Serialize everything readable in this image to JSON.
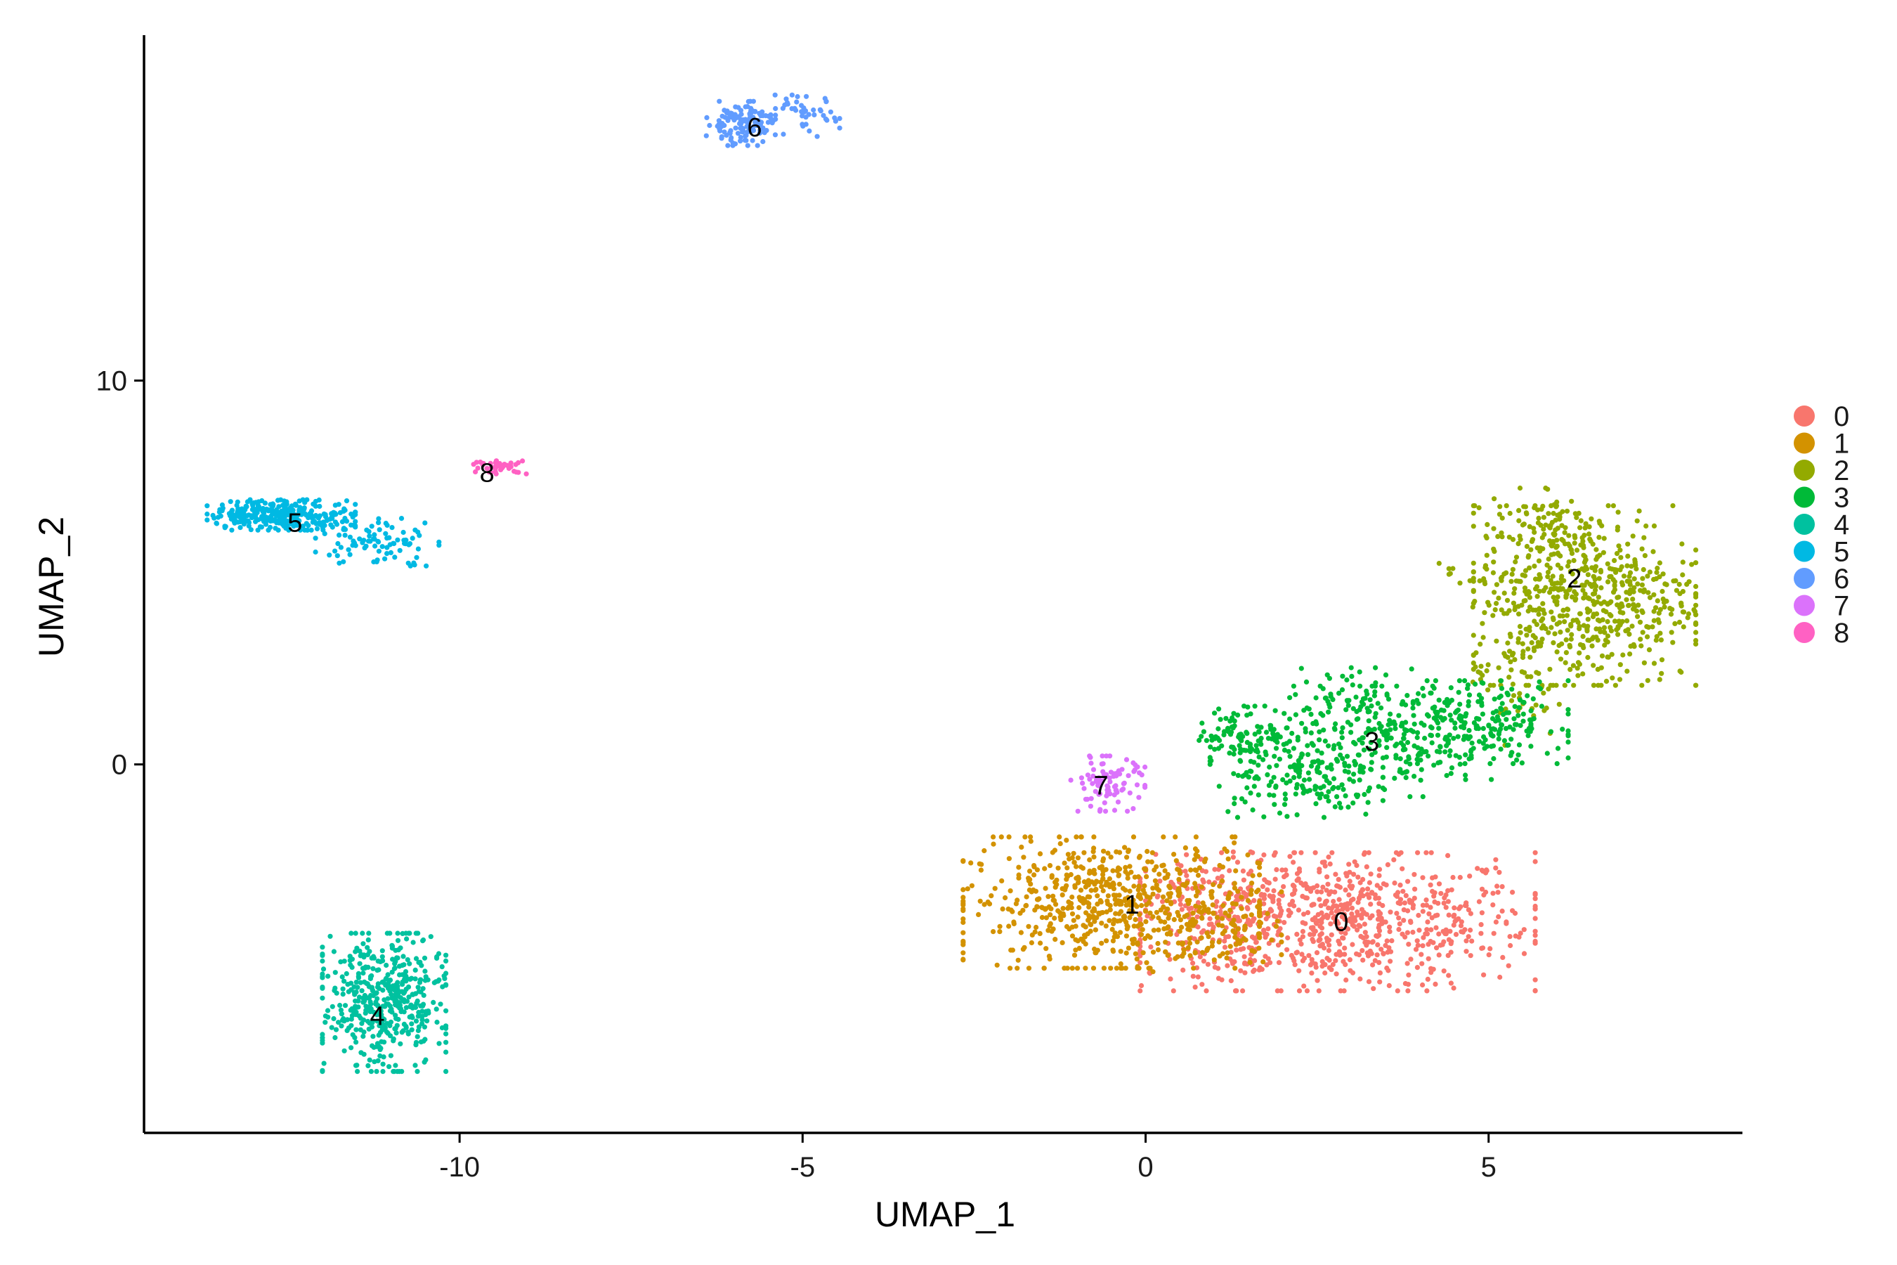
{
  "chart_data": {
    "type": "scatter",
    "title": "",
    "xlabel": "UMAP_1",
    "ylabel": "UMAP_2",
    "xlim": [
      -14.6,
      8.7
    ],
    "ylim": [
      -9.6,
      19.0
    ],
    "x_ticks": [
      -10,
      -5,
      0,
      5
    ],
    "y_ticks": [
      0,
      10
    ],
    "grid": false,
    "legend_position": "right",
    "series": [
      {
        "name": "0",
        "color": "#F8766D",
        "label_x": 2.85,
        "label_y": -4.1,
        "clusters": [
          {
            "center": [
              2.8,
              -4.1
            ],
            "spread": [
              1.6,
              1.0
            ],
            "n": 780
          },
          {
            "center": [
              0.9,
              -3.9
            ],
            "spread": [
              0.5,
              0.9
            ],
            "n": 120
          }
        ]
      },
      {
        "name": "1",
        "color": "#D39200",
        "label_x": -0.2,
        "label_y": -3.65,
        "clusters": [
          {
            "center": [
              -0.5,
              -3.6
            ],
            "spread": [
              1.2,
              0.95
            ],
            "n": 620
          },
          {
            "center": [
              0.9,
              -4.4
            ],
            "spread": [
              0.6,
              0.6
            ],
            "n": 90
          }
        ]
      },
      {
        "name": "2",
        "color": "#93AA00",
        "label_x": 6.25,
        "label_y": 4.85,
        "clusters": [
          {
            "center": [
              6.4,
              4.4
            ],
            "spread": [
              0.9,
              1.3
            ],
            "n": 620
          },
          {
            "center": [
              5.7,
              6.3
            ],
            "spread": [
              0.4,
              0.5
            ],
            "n": 60
          },
          {
            "center": [
              5.4,
              2.3
            ],
            "spread": [
              0.35,
              1.0
            ],
            "n": 60
          },
          {
            "center": [
              4.9,
              4.9
            ],
            "spread": [
              0.35,
              0.2
            ],
            "n": 20
          }
        ]
      },
      {
        "name": "3",
        "color": "#00BA38",
        "label_x": 3.3,
        "label_y": 0.6,
        "clusters": [
          {
            "center": [
              1.5,
              0.8
            ],
            "spread": [
              0.4,
              0.4
            ],
            "n": 110
          },
          {
            "center": [
              2.2,
              -0.3
            ],
            "spread": [
              0.7,
              0.6
            ],
            "n": 160
          },
          {
            "center": [
              3.6,
              0.6
            ],
            "spread": [
              0.8,
              0.8
            ],
            "n": 230
          },
          {
            "center": [
              4.9,
              1.1
            ],
            "spread": [
              0.7,
              0.6
            ],
            "n": 200
          },
          {
            "center": [
              3.0,
              1.8
            ],
            "spread": [
              0.5,
              0.4
            ],
            "n": 50
          }
        ]
      },
      {
        "name": "4",
        "color": "#00C19F",
        "label_x": -11.2,
        "label_y": -6.55,
        "clusters": [
          {
            "center": [
              -11.1,
              -6.2
            ],
            "spread": [
              0.5,
              1.0
            ],
            "n": 470
          }
        ]
      },
      {
        "name": "5",
        "color": "#00B9E3",
        "label_x": -12.4,
        "label_y": 6.3,
        "clusters": [
          {
            "center": [
              -12.6,
              6.5
            ],
            "spread": [
              0.6,
              0.22
            ],
            "n": 300
          },
          {
            "center": [
              -11.2,
              5.8
            ],
            "spread": [
              0.5,
              0.35
            ],
            "n": 90
          }
        ]
      },
      {
        "name": "6",
        "color": "#619CFF",
        "label_x": -5.7,
        "label_y": 16.6,
        "clusters": [
          {
            "center": [
              -5.9,
              16.7
            ],
            "spread": [
              0.28,
              0.32
            ],
            "n": 130
          },
          {
            "center": [
              -5.0,
              16.9
            ],
            "spread": [
              0.3,
              0.3
            ],
            "n": 45
          }
        ]
      },
      {
        "name": "7",
        "color": "#DB72FB",
        "label_x": -0.65,
        "label_y": -0.55,
        "clusters": [
          {
            "center": [
              -0.55,
              -0.5
            ],
            "spread": [
              0.3,
              0.4
            ],
            "n": 90
          }
        ]
      },
      {
        "name": "8",
        "color": "#FF61C3",
        "label_x": -9.6,
        "label_y": 7.6,
        "clusters": [
          {
            "center": [
              -9.4,
              7.75
            ],
            "spread": [
              0.22,
              0.1
            ],
            "n": 40
          }
        ]
      }
    ]
  }
}
